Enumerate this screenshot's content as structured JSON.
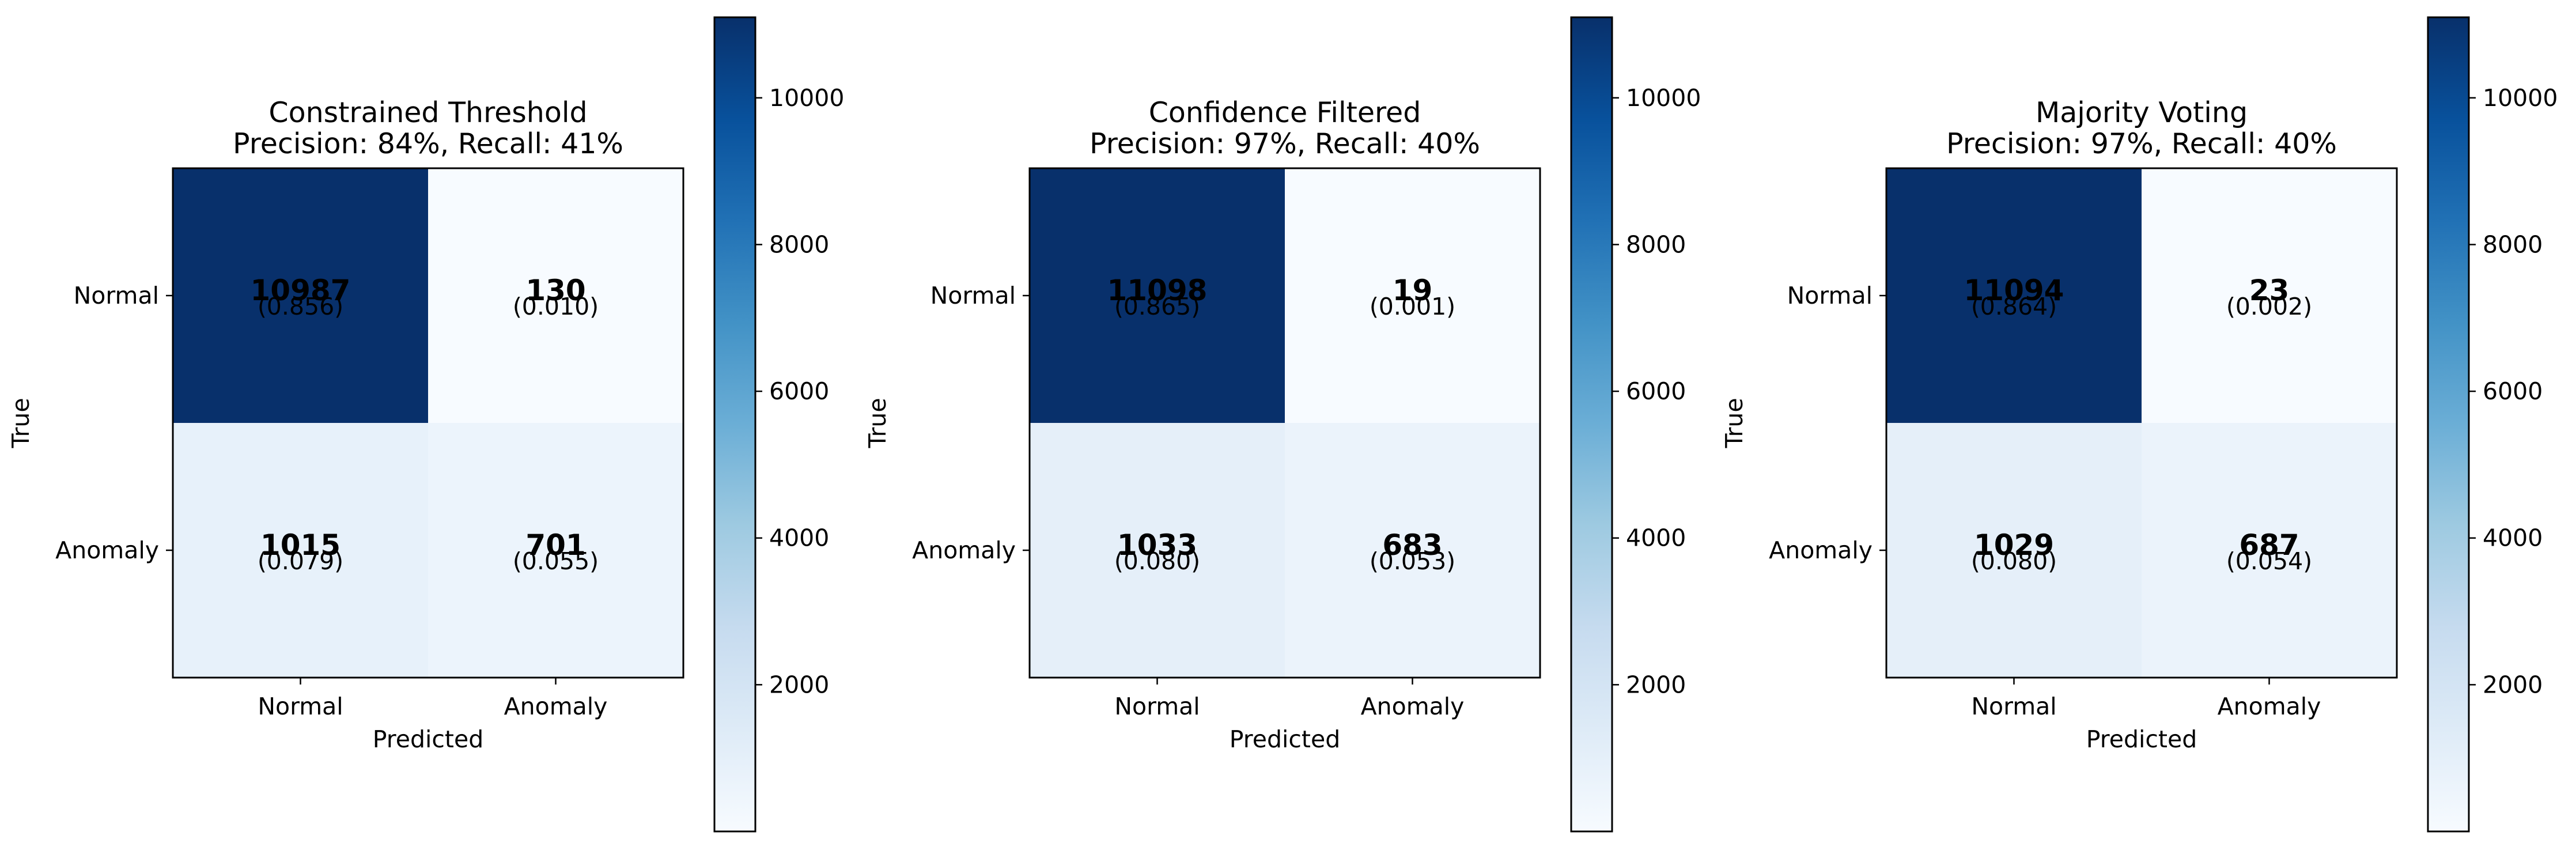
{
  "chart_data": [
    {
      "type": "heatmap",
      "title": "Constrained Threshold",
      "subtitle": "Precision: 84%, Recall: 41%",
      "xlabel": "Predicted",
      "ylabel": "True",
      "x_categories": [
        "Normal",
        "Anomaly"
      ],
      "y_categories": [
        "Normal",
        "Anomaly"
      ],
      "counts": [
        [
          10987,
          130
        ],
        [
          1015,
          701
        ]
      ],
      "fractions": [
        "(0.856)",
        "(0.010)",
        "(0.079)",
        "(0.055)"
      ],
      "colorbar": {
        "range": [
          0,
          11098
        ],
        "ticks": [
          2000,
          4000,
          6000,
          8000,
          10000
        ],
        "colormap": "Blues"
      }
    },
    {
      "type": "heatmap",
      "title": "Confidence Filtered",
      "subtitle": "Precision: 97%, Recall: 40%",
      "xlabel": "Predicted",
      "ylabel": "True",
      "x_categories": [
        "Normal",
        "Anomaly"
      ],
      "y_categories": [
        "Normal",
        "Anomaly"
      ],
      "counts": [
        [
          11098,
          19
        ],
        [
          1033,
          683
        ]
      ],
      "fractions": [
        "(0.865)",
        "(0.001)",
        "(0.080)",
        "(0.053)"
      ],
      "colorbar": {
        "range": [
          0,
          11098
        ],
        "ticks": [
          2000,
          4000,
          6000,
          8000,
          10000
        ],
        "colormap": "Blues"
      }
    },
    {
      "type": "heatmap",
      "title": "Majority Voting",
      "subtitle": "Precision: 97%, Recall: 40%",
      "xlabel": "Predicted",
      "ylabel": "True",
      "x_categories": [
        "Normal",
        "Anomaly"
      ],
      "y_categories": [
        "Normal",
        "Anomaly"
      ],
      "counts": [
        [
          11094,
          23
        ],
        [
          1029,
          687
        ]
      ],
      "fractions": [
        "(0.864)",
        "(0.002)",
        "(0.080)",
        "(0.054)"
      ],
      "colorbar": {
        "range": [
          0,
          11098
        ],
        "ticks": [
          2000,
          4000,
          6000,
          8000,
          10000
        ],
        "colormap": "Blues"
      }
    }
  ]
}
